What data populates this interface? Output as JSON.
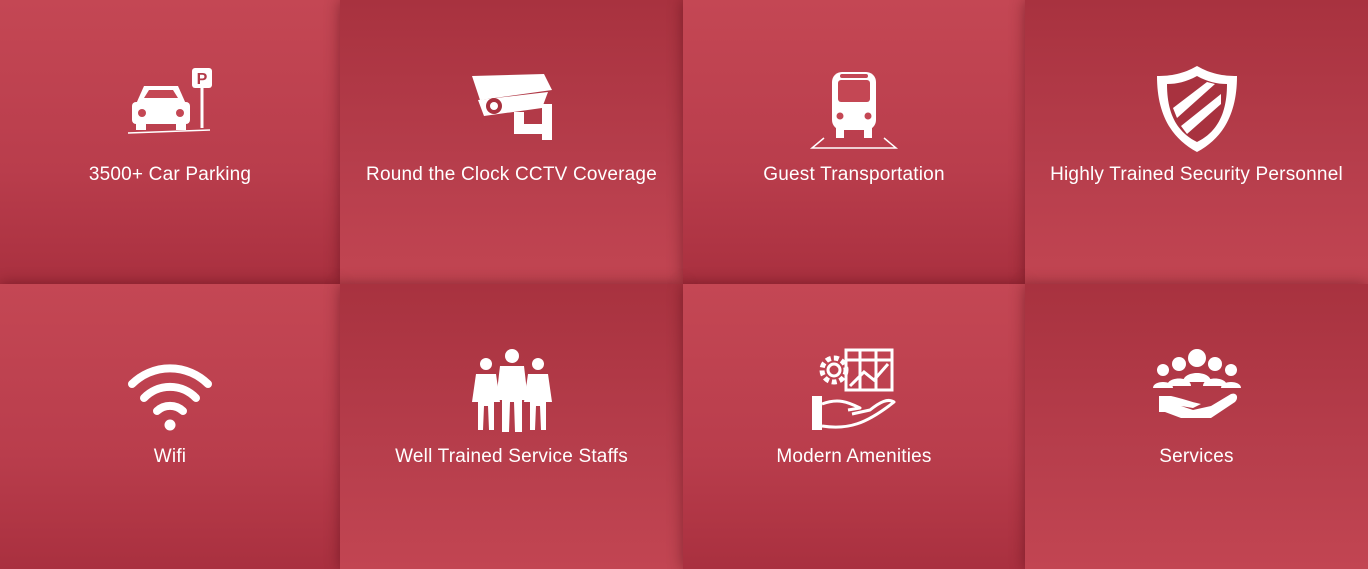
{
  "colors": {
    "tile_light": "#c44754",
    "tile_dark": "#a8323f",
    "text": "#ffffff"
  },
  "tiles": [
    {
      "label": "3500+ Car Parking",
      "icon": "car-parking-icon"
    },
    {
      "label": "Round the Clock CCTV Coverage",
      "icon": "cctv-camera-icon"
    },
    {
      "label": "Guest Transportation",
      "icon": "bus-icon"
    },
    {
      "label": "Highly Trained Security Personnel",
      "icon": "shield-icon"
    },
    {
      "label": "Wifi",
      "icon": "wifi-icon"
    },
    {
      "label": "Well Trained Service Staffs",
      "icon": "staff-group-icon"
    },
    {
      "label": "Modern Amenities",
      "icon": "amenities-gear-hand-icon"
    },
    {
      "label": "Services",
      "icon": "services-people-hand-icon"
    }
  ]
}
